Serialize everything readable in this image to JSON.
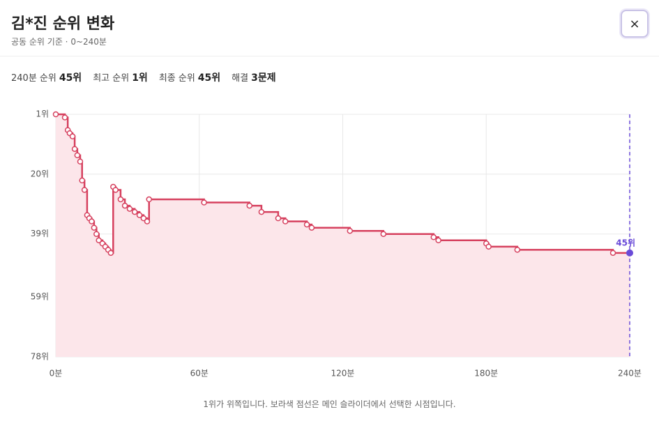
{
  "header": {
    "title": "김*진 순위 변화",
    "subtitle": "공동 순위 기준 · 0~240분",
    "close": "×"
  },
  "stats": [
    {
      "label": "240분 순위",
      "value": "45위"
    },
    {
      "label": "최고 순위",
      "value": "1위"
    },
    {
      "label": "최종 순위",
      "value": "45위"
    },
    {
      "label": "해결",
      "value": "3문제"
    }
  ],
  "chart_data": {
    "type": "step",
    "color": "#d6405e",
    "fill": "#fce6ea",
    "grid": true,
    "y_inverted": true,
    "x": [
      0,
      3.8,
      5,
      5.8,
      7,
      7.9,
      9,
      10.2,
      11,
      12,
      13.1,
      14,
      15,
      16,
      17,
      18,
      19.5,
      20.7,
      21.9,
      23,
      24,
      25,
      27.1,
      28.9,
      30.9,
      33,
      35,
      36.7,
      38.2,
      39,
      62,
      81,
      86,
      93,
      96,
      105,
      107,
      123,
      137,
      158,
      160,
      180,
      181,
      193,
      233
    ],
    "values": [
      1,
      2,
      6,
      7,
      8,
      12,
      14,
      16,
      22,
      25,
      33,
      34,
      35,
      37,
      39,
      41,
      42,
      43,
      44,
      45,
      24,
      25,
      28,
      30,
      31,
      32,
      33,
      34,
      35,
      28,
      29,
      30,
      32,
      34,
      35,
      36,
      37,
      38,
      39,
      40,
      41,
      42,
      43,
      44,
      45
    ],
    "xlim": [
      0,
      240
    ],
    "ylim": [
      1,
      78
    ],
    "xticks": [
      {
        "value": 0,
        "label": "0분"
      },
      {
        "value": 60,
        "label": "60분"
      },
      {
        "value": 120,
        "label": "120분"
      },
      {
        "value": 180,
        "label": "180분"
      },
      {
        "value": 240,
        "label": "240분"
      }
    ],
    "yticks": [
      {
        "value": 1,
        "label": "1위"
      },
      {
        "value": 20,
        "label": "20위"
      },
      {
        "value": 39,
        "label": "39위"
      },
      {
        "value": 59,
        "label": "59위"
      },
      {
        "value": 78,
        "label": "78위"
      }
    ],
    "selected": {
      "x": 240,
      "value": 45,
      "label": "45위",
      "color": "#6a4bd8"
    }
  },
  "note": "1위가 위쪽입니다. 보라색 점선은 메인 슬라이더에서 선택한 시점입니다."
}
